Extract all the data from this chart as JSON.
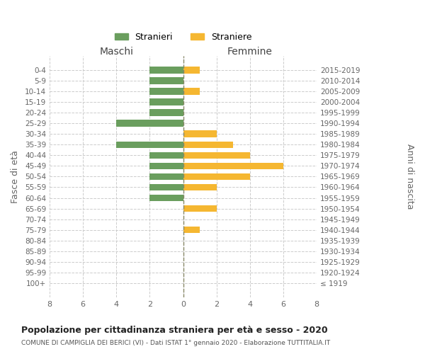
{
  "age_groups": [
    "100+",
    "95-99",
    "90-94",
    "85-89",
    "80-84",
    "75-79",
    "70-74",
    "65-69",
    "60-64",
    "55-59",
    "50-54",
    "45-49",
    "40-44",
    "35-39",
    "30-34",
    "25-29",
    "20-24",
    "15-19",
    "10-14",
    "5-9",
    "0-4"
  ],
  "birth_years": [
    "≤ 1919",
    "1920-1924",
    "1925-1929",
    "1930-1934",
    "1935-1939",
    "1940-1944",
    "1945-1949",
    "1950-1954",
    "1955-1959",
    "1960-1964",
    "1965-1969",
    "1970-1974",
    "1975-1979",
    "1980-1984",
    "1985-1989",
    "1990-1994",
    "1995-1999",
    "2000-2004",
    "2005-2009",
    "2010-2014",
    "2015-2019"
  ],
  "maschi": [
    0,
    0,
    0,
    0,
    0,
    0,
    0,
    0,
    2,
    2,
    2,
    2,
    2,
    4,
    0,
    4,
    2,
    2,
    2,
    2,
    2
  ],
  "femmine": [
    0,
    0,
    0,
    0,
    0,
    1,
    0,
    2,
    0,
    2,
    4,
    6,
    4,
    3,
    2,
    0,
    0,
    0,
    1,
    0,
    1
  ],
  "color_maschi": "#6a9e5e",
  "color_femmine": "#f5b731",
  "title": "Popolazione per cittadinanza straniera per età e sesso - 2020",
  "subtitle": "COMUNE DI CAMPIGLIA DEI BERICI (VI) - Dati ISTAT 1° gennaio 2020 - Elaborazione TUTTITALIA.IT",
  "ylabel_left": "Fasce di età",
  "ylabel_right": "Anni di nascita",
  "xlabel_maschi": "Maschi",
  "xlabel_femmine": "Femmine",
  "legend_maschi": "Stranieri",
  "legend_femmine": "Straniere",
  "xlim": 8,
  "background_color": "#ffffff",
  "grid_color": "#cccccc",
  "text_color": "#666666"
}
